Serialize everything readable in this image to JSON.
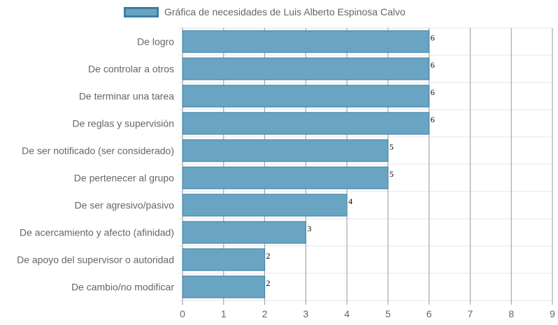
{
  "chart_data": {
    "type": "bar",
    "orientation": "horizontal",
    "categories": [
      "De logro",
      "De controlar a otros",
      "De terminar una tarea",
      "De reglas y supervisión",
      "De ser notificado (ser considerado)",
      "De pertenecer al grupo",
      "De ser agresivo/pasivo",
      "De acercamiento y afecto (afinidad)",
      "De apoyo del supervisor o autoridad",
      "De cambio/no modificar"
    ],
    "series": [
      {
        "name": "Gráfica de necesidades de Luis Alberto Espinosa Calvo",
        "values": [
          6,
          6,
          6,
          6,
          5,
          5,
          4,
          3,
          2,
          2
        ]
      }
    ],
    "xlim": [
      0,
      9
    ],
    "xticks": [
      "0",
      "1",
      "2",
      "3",
      "4",
      "5",
      "6",
      "7",
      "8",
      "9"
    ],
    "grid": true,
    "legend": "top",
    "data_labels": true,
    "colors": {
      "bar_fill": "#6aa4c3",
      "bar_border": "#3b7ea1",
      "grid": "#e6e6e6",
      "vgrid": "#999999",
      "text": "#666666"
    }
  }
}
